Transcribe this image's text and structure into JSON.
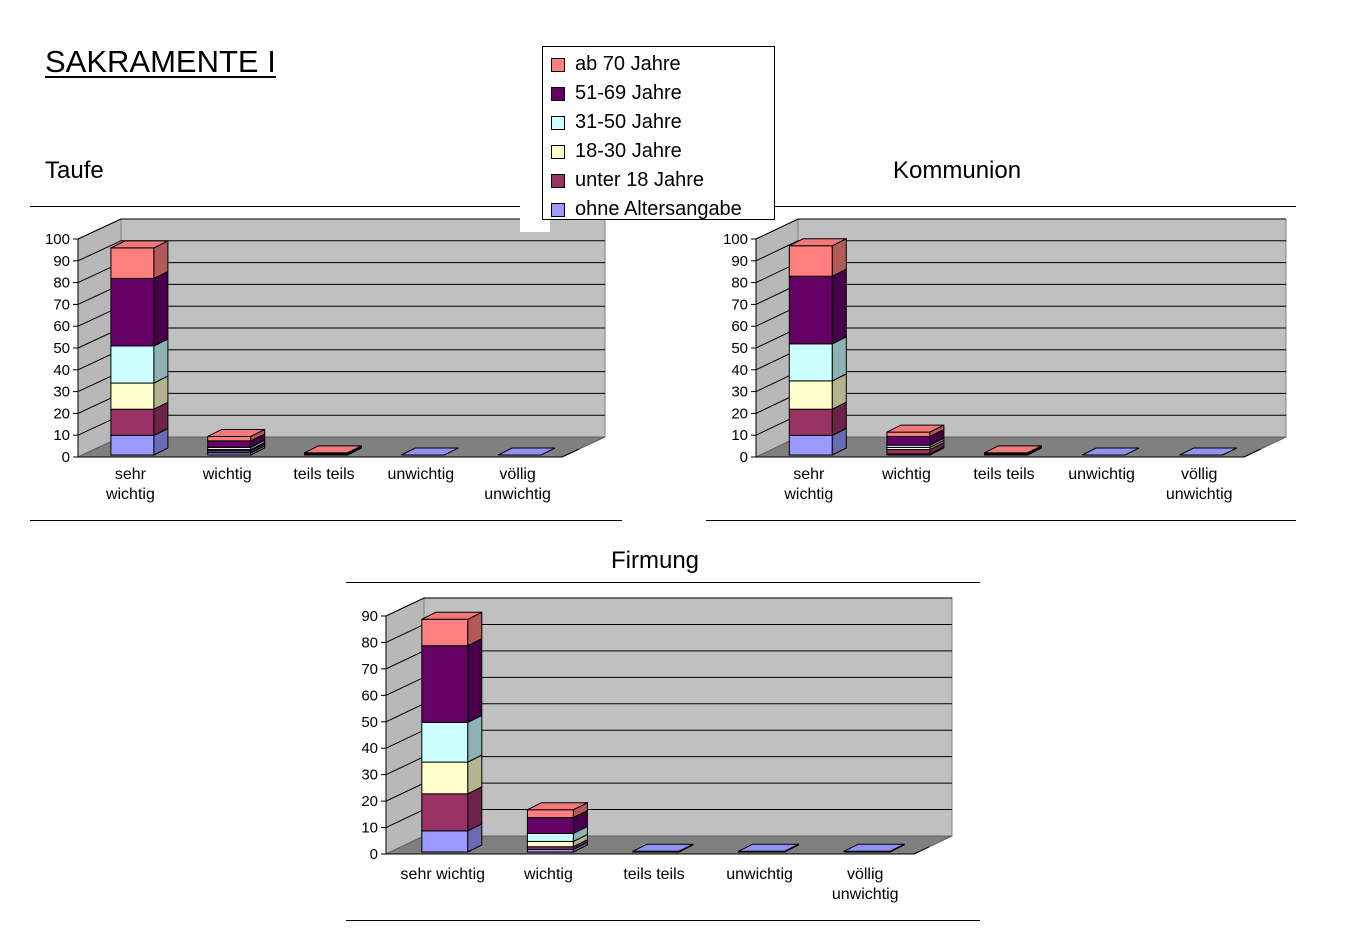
{
  "page_title": "SAKRAMENTE I",
  "legend": [
    {
      "name": "ab 70 Jahre",
      "color": "#ff7f7f"
    },
    {
      "name": "51-69 Jahre",
      "color": "#650065"
    },
    {
      "name": "31-50 Jahre",
      "color": "#ccffff"
    },
    {
      "name": "18-30 Jahre",
      "color": "#ffffcc"
    },
    {
      "name": "unter 18 Jahre",
      "color": "#993366"
    },
    {
      "name": "ohne Altersangabe",
      "color": "#9999ff"
    }
  ],
  "chart_data": [
    {
      "type": "bar",
      "stacked": true,
      "three_d": true,
      "title": "Taufe",
      "categories": [
        [
          "sehr",
          "wichtig"
        ],
        [
          "wichtig"
        ],
        [
          "teils teils"
        ],
        [
          "unwichtig"
        ],
        [
          "völlig",
          "unwichtig"
        ]
      ],
      "ylim": [
        0,
        100
      ],
      "yticks": [
        0,
        10,
        20,
        30,
        40,
        50,
        60,
        70,
        80,
        90,
        100
      ],
      "grid": true,
      "series": [
        {
          "name": "ohne Altersangabe",
          "values": [
            9,
            1,
            0,
            0,
            0
          ]
        },
        {
          "name": "unter 18 Jahre",
          "values": [
            12,
            1,
            0.5,
            0,
            0
          ]
        },
        {
          "name": "18-30 Jahre",
          "values": [
            12,
            0.5,
            0,
            0,
            0
          ]
        },
        {
          "name": "31-50 Jahre",
          "values": [
            17,
            1,
            0,
            0,
            0
          ]
        },
        {
          "name": "51-69 Jahre",
          "values": [
            31,
            3,
            0,
            0,
            0
          ]
        },
        {
          "name": "ab 70 Jahre",
          "values": [
            14,
            2,
            0.5,
            0,
            0
          ]
        }
      ]
    },
    {
      "type": "bar",
      "stacked": true,
      "three_d": true,
      "title": "Kommunion",
      "categories": [
        [
          "sehr",
          "wichtig"
        ],
        [
          "wichtig"
        ],
        [
          "teils teils"
        ],
        [
          "unwichtig"
        ],
        [
          "völlig",
          "unwichtig"
        ]
      ],
      "ylim": [
        0,
        100
      ],
      "yticks": [
        0,
        10,
        20,
        30,
        40,
        50,
        60,
        70,
        80,
        90,
        100
      ],
      "grid": true,
      "series": [
        {
          "name": "ohne Altersangabe",
          "values": [
            9,
            0.5,
            0,
            0,
            0
          ]
        },
        {
          "name": "unter 18 Jahre",
          "values": [
            12,
            2,
            0.5,
            0,
            0
          ]
        },
        {
          "name": "18-30 Jahre",
          "values": [
            13,
            1,
            0,
            0,
            0
          ]
        },
        {
          "name": "31-50 Jahre",
          "values": [
            17,
            1,
            0,
            0,
            0
          ]
        },
        {
          "name": "51-69 Jahre",
          "values": [
            31,
            4,
            0,
            0,
            0
          ]
        },
        {
          "name": "ab 70 Jahre",
          "values": [
            14,
            2,
            0.5,
            0,
            0
          ]
        }
      ]
    },
    {
      "type": "bar",
      "stacked": true,
      "three_d": true,
      "title": "Firmung",
      "categories": [
        [
          "sehr wichtig"
        ],
        [
          "wichtig"
        ],
        [
          "teils teils"
        ],
        [
          "unwichtig"
        ],
        [
          "völlig",
          "unwichtig"
        ]
      ],
      "ylim": [
        0,
        90
      ],
      "yticks": [
        0,
        10,
        20,
        30,
        40,
        50,
        60,
        70,
        80,
        90
      ],
      "grid": true,
      "series": [
        {
          "name": "ohne Altersangabe",
          "values": [
            8,
            1,
            0.3,
            0.3,
            0.3
          ]
        },
        {
          "name": "unter 18 Jahre",
          "values": [
            14,
            1,
            0,
            0,
            0
          ]
        },
        {
          "name": "18-30 Jahre",
          "values": [
            12,
            2,
            0,
            0,
            0
          ]
        },
        {
          "name": "31-50 Jahre",
          "values": [
            15,
            3,
            0,
            0,
            0
          ]
        },
        {
          "name": "51-69 Jahre",
          "values": [
            29,
            6,
            0,
            0,
            0
          ]
        },
        {
          "name": "ab 70 Jahre",
          "values": [
            10,
            3,
            0,
            0,
            0
          ]
        }
      ]
    }
  ]
}
